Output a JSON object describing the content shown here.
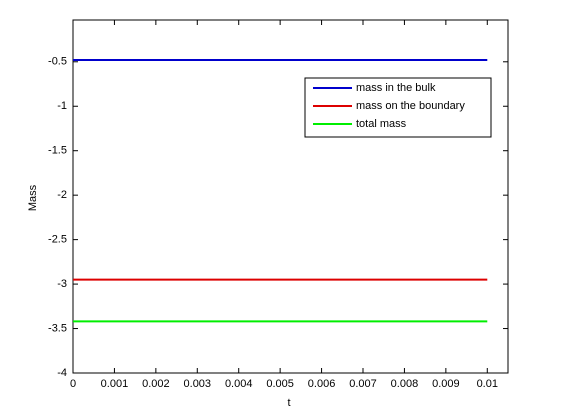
{
  "chart_data": {
    "type": "line",
    "xlabel": "t",
    "ylabel": "Mass",
    "x": [
      0,
      0.01
    ],
    "series": [
      {
        "name": "mass in the bulk",
        "color": "#0000cc",
        "values": [
          -0.48,
          -0.48
        ]
      },
      {
        "name": "mass on the boundary",
        "color": "#dd0000",
        "values": [
          -2.95,
          -2.95
        ]
      },
      {
        "name": "total mass",
        "color": "#00ee00",
        "values": [
          -3.42,
          -3.42
        ]
      }
    ],
    "xlim": [
      0,
      0.0105
    ],
    "xticks": [
      0,
      0.001,
      0.002,
      0.003,
      0.004,
      0.005,
      0.006,
      0.007,
      0.008,
      0.009,
      0.01
    ],
    "ylim": [
      -4,
      -0.03
    ],
    "yticks": [
      -4,
      -3.5,
      -3,
      -2.5,
      -2,
      -1.5,
      -1,
      -0.5
    ],
    "grid": false,
    "legend": "upper right"
  }
}
